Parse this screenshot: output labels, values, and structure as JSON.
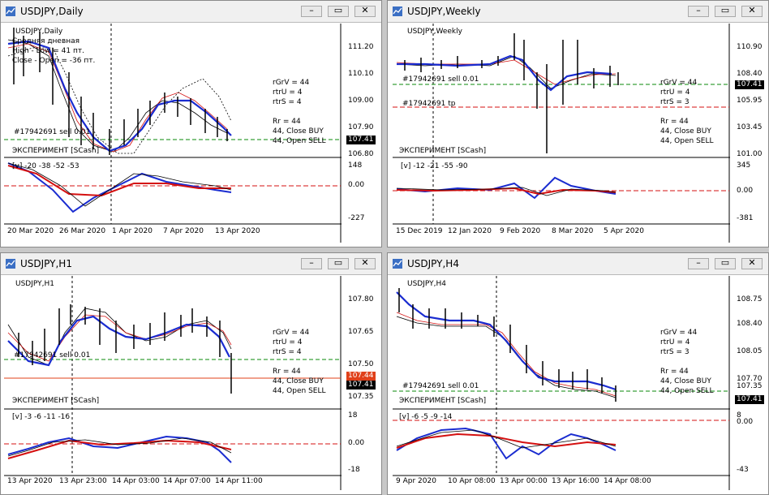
{
  "windows": {
    "daily": {
      "title": "USDJPY,Daily",
      "chart_label": "USDJPY,Daily",
      "legend_lines": [
        "Средняя дневная",
        "High - Low = 41 пт.",
        "Close - Open = -36 пт."
      ],
      "y_ticks": [
        "111.20",
        "110.10",
        "109.00",
        "107.90",
        "106.80"
      ],
      "current_price": "107.41",
      "order_label": "#17942691 sell 0.01",
      "info_lines": [
        "rGrV = 44",
        "rtrU = 4",
        "rtrS = 4",
        "",
        "Rr = 44",
        "44, Close BUY",
        "44, Open SELL"
      ],
      "experiment_label": "ЭКСПЕРИМЕНТ   [SCash]",
      "sub_label": "[v]    -20 -38 -52 -53",
      "sub_ticks": [
        "148",
        "0.00",
        "-227"
      ],
      "x_ticks": [
        "20 Mar 2020",
        "26 Mar 2020",
        "1 Apr 2020",
        "7 Apr 2020",
        "13 Apr 2020"
      ]
    },
    "weekly": {
      "title": "USDJPY,Weekly",
      "chart_label": "USDJPY,Weekly",
      "y_ticks": [
        "110.90",
        "108.40",
        "105.95",
        "103.45",
        "101.00"
      ],
      "current_price": "107.41",
      "order_label": "#17942691 sell 0.01",
      "tp_label": "#17942691 tp",
      "info_lines": [
        "rGrV = 44",
        "rtrU = 4",
        "rtrS = 3",
        "",
        "Rr = 44",
        "44, Close BUY",
        "44, Open SELL"
      ],
      "experiment_label": "ЭКСПЕРИМЕНТ   [SCash]",
      "sub_label": "[v]    -12 -21 -55 -90",
      "sub_ticks": [
        "345",
        "0.00",
        "-381"
      ],
      "x_ticks": [
        "15 Dec 2019",
        "12 Jan 2020",
        "9 Feb 2020",
        "8 Mar 2020",
        "5 Apr 2020"
      ]
    },
    "h1": {
      "title": "USDJPY,H1",
      "chart_label": "USDJPY,H1",
      "y_ticks": [
        "107.80",
        "107.65",
        "107.50",
        "107.35"
      ],
      "current_price": "107.41",
      "red_price": "107.44",
      "order_label": "#17942691 sell 0.01",
      "info_lines": [
        "rGrV = 44",
        "rtrU = 4",
        "rtrS = 4",
        "",
        "Rr = 44",
        "44, Close BUY",
        "44, Open SELL"
      ],
      "experiment_label": "ЭКСПЕРИМЕНТ   [SCash]",
      "sub_label": "[v]    -3 -6 -11 -16",
      "sub_ticks": [
        "18",
        "0.00",
        "-18"
      ],
      "x_ticks": [
        "13 Apr 2020",
        "13 Apr 23:00",
        "14 Apr 03:00",
        "14 Apr 07:00",
        "14 Apr 11:00"
      ]
    },
    "h4": {
      "title": "USDJPY,H4",
      "chart_label": "USDJPY,H4",
      "y_ticks": [
        "108.75",
        "108.40",
        "108.05",
        "107.70",
        "107.35"
      ],
      "current_price": "107.41",
      "order_label": "#17942691 sell 0.01",
      "info_lines": [
        "rGrV = 44",
        "rtrU = 4",
        "rtrS = 3",
        "",
        "Rr = 44",
        "44, Close BUY",
        "44, Open SELL"
      ],
      "experiment_label": "ЭКСПЕРИМЕНТ   [SCash]",
      "sub_label": "[v]    -6 -5 -9 -14",
      "sub_ticks": [
        "8",
        "0.00",
        "-43"
      ],
      "x_ticks": [
        "9 Apr 2020",
        "10 Apr 08:00",
        "13 Apr 00:00",
        "13 Apr 16:00",
        "14 Apr 08:00"
      ]
    }
  },
  "buttons": {
    "minimize": "–",
    "restore": "▭",
    "close": "✕"
  },
  "colors": {
    "blue": "#1a2cd0",
    "red": "#d41010",
    "green": "#0a8a0a",
    "grid": "#000000"
  }
}
